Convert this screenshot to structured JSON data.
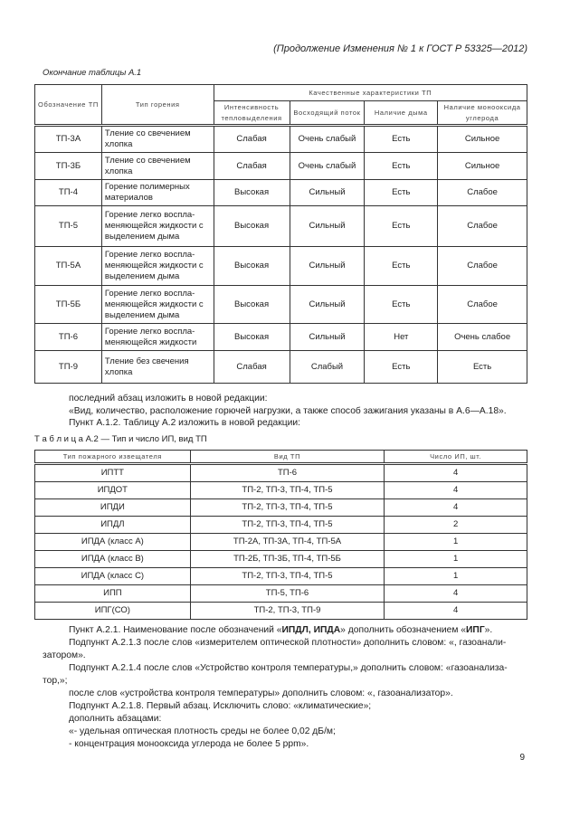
{
  "header": "(Продолжение Изменения № 1 к ГОСТ Р 53325—2012)",
  "table1": {
    "caption": "Окончание таблицы А.1",
    "headers": {
      "designation": "Обозначение ТП",
      "burn_type": "Тип горения",
      "group": "Качественные характеристики ТП",
      "intensity": "Интенсивность тепловыделения",
      "flow": "Восходящий поток",
      "smoke": "Наличие дыма",
      "co": "Наличие монооксида углерода"
    },
    "rows": [
      [
        "ТП-3А",
        "Тление со свечением хлопка",
        "Слабая",
        "Очень слабый",
        "Есть",
        "Сильное"
      ],
      [
        "ТП-3Б",
        "Тление со свечением хлопка",
        "Слабая",
        "Очень слабый",
        "Есть",
        "Сильное"
      ],
      [
        "ТП-4",
        "Горение полимерных материалов",
        "Высокая",
        "Сильный",
        "Есть",
        "Слабое"
      ],
      [
        "ТП-5",
        "Горение легко воспла-меняющейся жидкости с выделением дыма",
        "Высокая",
        "Сильный",
        "Есть",
        "Слабое"
      ],
      [
        "ТП-5А",
        "Горение легко воспла-меняющейся жидкости с выделением дыма",
        "Высокая",
        "Сильный",
        "Есть",
        "Слабое"
      ],
      [
        "ТП-5Б",
        "Горение легко воспла-меняющейся жидкости с выделением дыма",
        "Высокая",
        "Сильный",
        "Есть",
        "Слабое"
      ],
      [
        "ТП-6",
        "Горение легко воспла-меняющейся жидкости",
        "Высокая",
        "Сильный",
        "Нет",
        "Очень слабое"
      ],
      [
        "ТП-9",
        "Тление без свечения хлопка",
        "Слабая",
        "Слабый",
        "Есть",
        "Есть"
      ]
    ]
  },
  "text1": [
    "последний абзац изложить в новой редакции:",
    "«Вид, количество, расположение горючей нагрузки, а также способ зажигания указаны в А.6—А.18».",
    "Пункт А.1.2. Таблицу А.2 изложить в новой редакции:"
  ],
  "table2": {
    "caption": "Т а б л и ц а  А.2 — Тип и число ИП, вид ТП",
    "headers": [
      "Тип пожарного извещателя",
      "Вид ТП",
      "Число ИП, шт."
    ],
    "rows": [
      [
        "ИПТТ",
        "ТП-6",
        "4"
      ],
      [
        "ИПДОТ",
        "ТП-2, ТП-3, ТП-4, ТП-5",
        "4"
      ],
      [
        "ИПДИ",
        "ТП-2, ТП-3, ТП-4, ТП-5",
        "4"
      ],
      [
        "ИПДЛ",
        "ТП-2, ТП-3, ТП-4, ТП-5",
        "2"
      ],
      [
        "ИПДА (класс А)",
        "ТП-2А, ТП-3А, ТП-4, ТП-5А",
        "1"
      ],
      [
        "ИПДА (класс В)",
        "ТП-2Б, ТП-3Б, ТП-4, ТП-5Б",
        "1"
      ],
      [
        "ИПДА (класс С)",
        "ТП-2, ТП-3, ТП-4, ТП-5",
        "1"
      ],
      [
        "ИПП",
        "ТП-5, ТП-6",
        "4"
      ],
      [
        "ИПГ(СО)",
        "ТП-2, ТП-3, ТП-9",
        "4"
      ]
    ]
  },
  "text2": {
    "p1a": "Пункт А.2.1. Наименование после обозначений «",
    "p1b": "ИПДЛ, ИПДА",
    "p1c": "» дополнить обозначением «",
    "p1d": "ИПГ",
    "p1e": "».",
    "lines": [
      "Подпункт А.2.1.3 после слов «измерителем оптической плотности» дополнить словом: «, газоанали-",
      "затором».",
      "Подпункт А.2.1.4 после слов «Устройство контроля температуры,» дополнить словом: «газоанализа-",
      "тор,»;",
      "после слов «устройства контроля температуры» дополнить словом: «, газоанализатор».",
      "Подпункт А.2.1.8. Первый абзац. Исключить слово: «климатические»;",
      "дополнить абзацами:",
      "«-  удельная оптическая плотность среды не более 0,02 дБ/м;",
      "- концентрация монооксида углерода не более 5 ppm»."
    ]
  },
  "page_number": "9"
}
